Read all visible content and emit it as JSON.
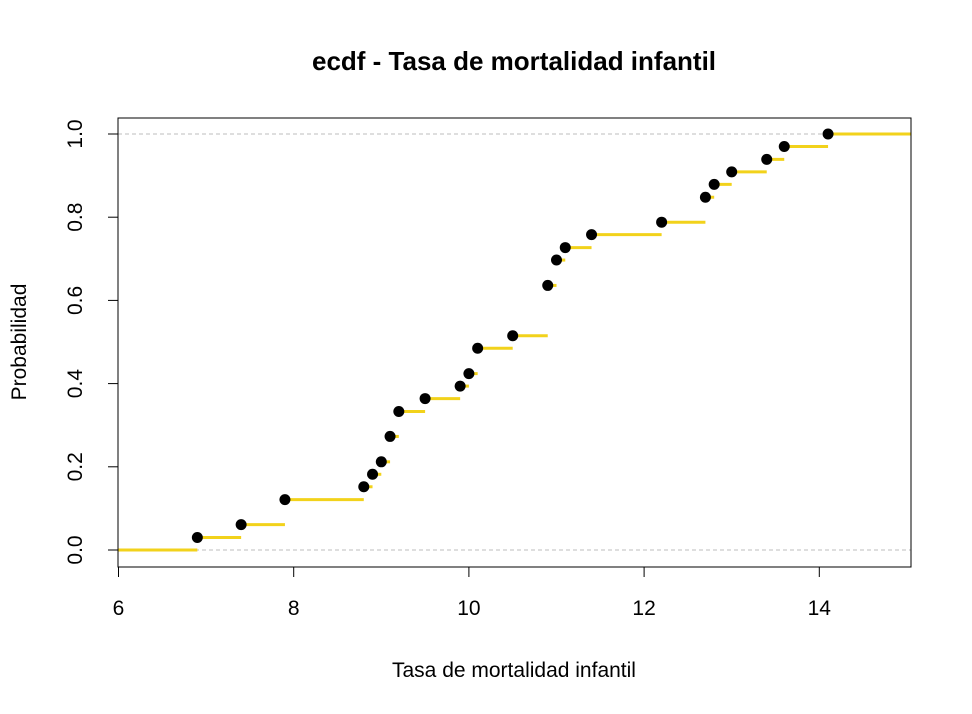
{
  "chart_data": {
    "type": "step",
    "title": "ecdf - Tasa de mortalidad infantil",
    "xlabel": "Tasa de mortalidad infantil",
    "ylabel": "Probabilidad",
    "xlim": [
      6,
      15
    ],
    "ylim": [
      0,
      1
    ],
    "x_ticks": [
      "6",
      "8",
      "10",
      "12",
      "14"
    ],
    "y_ticks": [
      "0.0",
      "0.2",
      "0.4",
      "0.6",
      "0.8",
      "1.0"
    ],
    "reference_lines": [
      0,
      1
    ],
    "points": [
      {
        "x": 6.9,
        "y": 0.03
      },
      {
        "x": 7.4,
        "y": 0.061
      },
      {
        "x": 7.9,
        "y": 0.121
      },
      {
        "x": 8.8,
        "y": 0.152
      },
      {
        "x": 8.9,
        "y": 0.182
      },
      {
        "x": 9.0,
        "y": 0.212
      },
      {
        "x": 9.1,
        "y": 0.273
      },
      {
        "x": 9.2,
        "y": 0.333
      },
      {
        "x": 9.5,
        "y": 0.364
      },
      {
        "x": 9.9,
        "y": 0.394
      },
      {
        "x": 10.0,
        "y": 0.424
      },
      {
        "x": 10.1,
        "y": 0.485
      },
      {
        "x": 10.5,
        "y": 0.515
      },
      {
        "x": 10.9,
        "y": 0.636
      },
      {
        "x": 11.0,
        "y": 0.697
      },
      {
        "x": 11.1,
        "y": 0.727
      },
      {
        "x": 11.4,
        "y": 0.758
      },
      {
        "x": 12.2,
        "y": 0.788
      },
      {
        "x": 12.7,
        "y": 0.848
      },
      {
        "x": 12.8,
        "y": 0.879
      },
      {
        "x": 13.0,
        "y": 0.909
      },
      {
        "x": 13.4,
        "y": 0.939
      },
      {
        "x": 13.6,
        "y": 0.97
      },
      {
        "x": 14.1,
        "y": 1.0
      }
    ],
    "colors": {
      "step": "#F2D21B",
      "point": "#000000",
      "reference": "#BDBDBD",
      "frame": "#000000"
    },
    "grid": false
  }
}
